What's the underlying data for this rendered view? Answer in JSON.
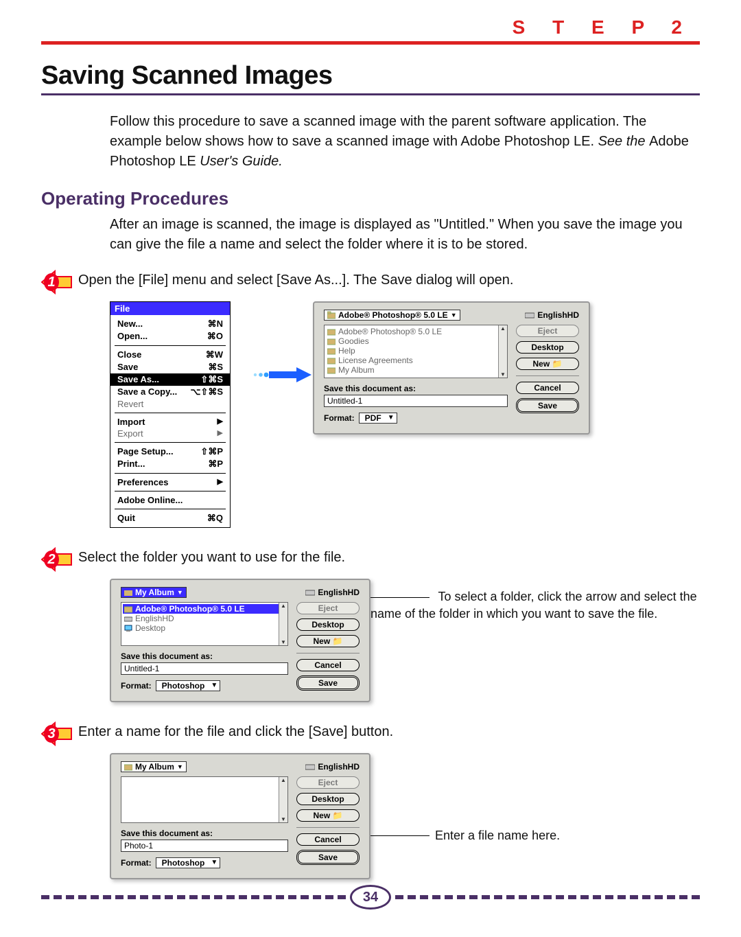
{
  "header": {
    "step_label": "S T E P   2",
    "title": "Saving Scanned Images"
  },
  "intro": {
    "text_a": "Follow this procedure to save a scanned image with the parent software application. The example below shows how to save a scanned image with Adobe Photoshop LE. ",
    "see_the": "See the ",
    "normal_mid": "Adobe Photoshop LE ",
    "users_guide": "User's Guide."
  },
  "section": {
    "heading": "Operating Procedures",
    "para": "After an image is scanned, the image is displayed as \"Untitled.\" When you save the image you can give the file a name and select the folder where it is to be stored."
  },
  "steps": {
    "s1": "Open the [File] menu and select [Save As...]. The Save dialog will open.",
    "s2": "Select the folder you want to use for the file.",
    "s2_note": "To select a folder, click the arrow and select the name of the folder in which you want to save the file.",
    "s3": "Enter a name for the file and click the [Save] button.",
    "s3_note": "Enter a file name here."
  },
  "file_menu": {
    "title": "File",
    "items": [
      {
        "label": "New...",
        "shortcut": "⌘N",
        "bold": true
      },
      {
        "label": "Open...",
        "shortcut": "⌘O",
        "bold": true
      },
      {
        "sep": true
      },
      {
        "label": "Close",
        "shortcut": "⌘W",
        "bold": true
      },
      {
        "label": "Save",
        "shortcut": "⌘S",
        "bold": true
      },
      {
        "label": "Save As...",
        "shortcut": "⇧⌘S",
        "bold": true,
        "highlight": true,
        "cursor": true
      },
      {
        "label": "Save a Copy...",
        "shortcut": "⌥⇧⌘S",
        "bold": true
      },
      {
        "label": "Revert",
        "dim": true
      },
      {
        "sep": true
      },
      {
        "label": "Import",
        "submenu": true,
        "bold": true
      },
      {
        "label": "Export",
        "submenu": true,
        "dim": true
      },
      {
        "sep": true
      },
      {
        "label": "Page Setup...",
        "shortcut": "⇧⌘P",
        "bold": true
      },
      {
        "label": "Print...",
        "shortcut": "⌘P",
        "bold": true
      },
      {
        "sep": true
      },
      {
        "label": "Preferences",
        "submenu": true,
        "bold": true
      },
      {
        "sep": true
      },
      {
        "label": "Adobe Online...",
        "bold": true
      },
      {
        "sep": true
      },
      {
        "label": "Quit",
        "shortcut": "⌘Q",
        "bold": true
      }
    ]
  },
  "dialog1": {
    "location": "Adobe® Photoshop® 5.0 LE",
    "disk": "EnglishHD",
    "list": [
      {
        "label": "Adobe® Photoshop® 5.0 LE",
        "dim": true,
        "icon": "app"
      },
      {
        "label": "Goodies",
        "dim": true,
        "icon": "folder"
      },
      {
        "label": "Help",
        "dim": true,
        "icon": "folder"
      },
      {
        "label": "License Agreements",
        "dim": true,
        "icon": "folder"
      },
      {
        "label": "My Album",
        "dim": true,
        "icon": "folder"
      }
    ],
    "save_as_label": "Save this document as:",
    "filename": "Untitled-1",
    "format_label": "Format:",
    "format_value": "PDF",
    "buttons": {
      "eject": "Eject",
      "desktop": "Desktop",
      "new": "New",
      "cancel": "Cancel",
      "save": "Save"
    }
  },
  "dialog2": {
    "location": "My Album",
    "disk": "EnglishHD",
    "list": [
      {
        "label": "Adobe® Photoshop® 5.0 LE",
        "sel": true,
        "icon": "folder"
      },
      {
        "label": "EnglishHD",
        "icon": "disk"
      },
      {
        "label": "Desktop",
        "icon": "desktop"
      }
    ],
    "save_as_label": "Save this document as:",
    "filename": "Untitled-1",
    "format_label": "Format:",
    "format_value": "Photoshop",
    "buttons": {
      "eject": "Eject",
      "desktop": "Desktop",
      "new": "New",
      "cancel": "Cancel",
      "save": "Save"
    }
  },
  "dialog3": {
    "location": "My Album",
    "disk": "EnglishHD",
    "save_as_label": "Save this document as:",
    "filename": "Photo-1",
    "format_label": "Format:",
    "format_value": "Photoshop",
    "buttons": {
      "eject": "Eject",
      "desktop": "Desktop",
      "new": "New",
      "cancel": "Cancel",
      "save": "Save"
    }
  },
  "page_number": "34",
  "colors": {
    "red": "#d22",
    "purple": "#4a2f66",
    "badge_fill": "#ffcc33",
    "badge_stroke": "#e02"
  }
}
